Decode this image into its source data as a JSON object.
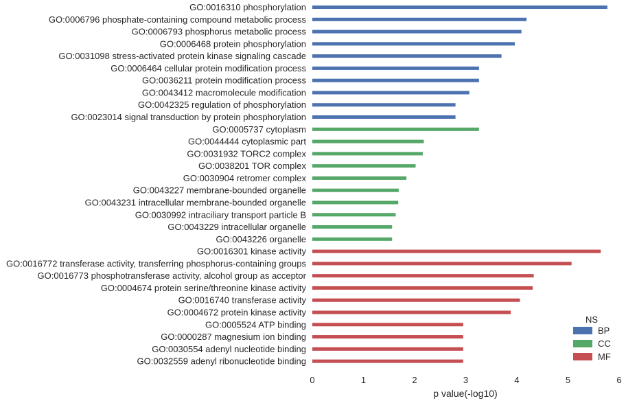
{
  "chart_data": {
    "type": "bar",
    "orientation": "horizontal",
    "title": "",
    "xlabel": "p value(-log10)",
    "ylabel": "",
    "xlim": [
      0,
      6
    ],
    "xticks": [
      "0",
      "1",
      "2",
      "3",
      "4",
      "5",
      "6"
    ],
    "grid": false,
    "legend": {
      "title": "NS",
      "placement": "bottom-right",
      "entries": [
        {
          "name": "BP",
          "color": "#4c72b0"
        },
        {
          "name": "CC",
          "color": "#55a868"
        },
        {
          "name": "MF",
          "color": "#c44e52"
        }
      ]
    },
    "categories": [
      "GO:0016310 phosphorylation",
      "GO:0006796 phosphate-containing compound metabolic process",
      "GO:0006793 phosphorus metabolic process",
      "GO:0006468 protein phosphorylation",
      "GO:0031098 stress-activated protein kinase signaling cascade",
      "GO:0006464 cellular protein modification process",
      "GO:0036211 protein modification process",
      "GO:0043412 macromolecule modification",
      "GO:0042325 regulation of phosphorylation",
      "GO:0023014 signal transduction by protein phosphorylation",
      "GO:0005737 cytoplasm",
      "GO:0044444 cytoplasmic part",
      "GO:0031932 TORC2 complex",
      "GO:0038201 TOR complex",
      "GO:0030904 retromer complex",
      "GO:0043227 membrane-bounded organelle",
      "GO:0043231 intracellular membrane-bounded organelle",
      "GO:0030992 intraciliary transport particle B",
      "GO:0043229 intracellular organelle",
      "GO:0043226 organelle",
      "GO:0016301 kinase activity",
      "GO:0016772 transferase activity, transferring phosphorus-containing groups",
      "GO:0016773 phosphotransferase activity, alcohol group as acceptor",
      "GO:0004674 protein serine/threonine kinase activity",
      "GO:0016740 transferase activity",
      "GO:0004672 protein kinase activity",
      "GO:0005524 ATP binding",
      "GO:0000287 magnesium ion binding",
      "GO:0030554 adenyl nucleotide binding",
      "GO:0032559 adenyl ribonucleotide binding"
    ],
    "namespace": [
      "BP",
      "BP",
      "BP",
      "BP",
      "BP",
      "BP",
      "BP",
      "BP",
      "BP",
      "BP",
      "CC",
      "CC",
      "CC",
      "CC",
      "CC",
      "CC",
      "CC",
      "CC",
      "CC",
      "CC",
      "MF",
      "MF",
      "MF",
      "MF",
      "MF",
      "MF",
      "MF",
      "MF",
      "MF",
      "MF"
    ],
    "values": [
      5.77,
      4.19,
      4.09,
      3.96,
      3.7,
      3.26,
      3.26,
      3.07,
      2.8,
      2.8,
      3.26,
      2.18,
      2.16,
      2.02,
      1.84,
      1.69,
      1.68,
      1.63,
      1.56,
      1.56,
      5.64,
      5.07,
      4.33,
      4.31,
      4.06,
      3.88,
      2.95,
      2.95,
      2.95,
      2.95
    ]
  }
}
